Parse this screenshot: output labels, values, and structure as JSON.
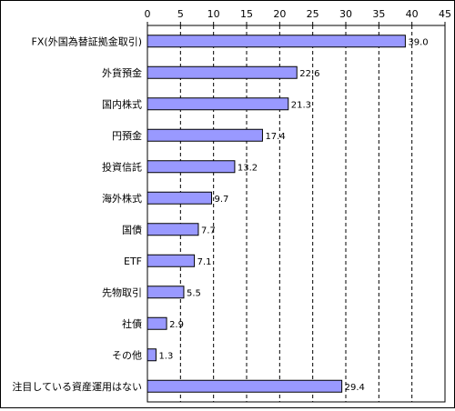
{
  "chart_data": {
    "type": "bar",
    "orientation": "horizontal",
    "categories": [
      "FX(外国為替証拠金取引)",
      "外貨預金",
      "国内株式",
      "円預金",
      "投資信託",
      "海外株式",
      "国債",
      "ETF",
      "先物取引",
      "社債",
      "その他",
      "注目している資産運用はない"
    ],
    "values": [
      39.0,
      22.6,
      21.3,
      17.4,
      13.2,
      9.7,
      7.7,
      7.1,
      5.5,
      2.9,
      1.3,
      29.4
    ],
    "value_labels": [
      "39.0",
      "22.6",
      "21.3",
      "17.4",
      "13.2",
      "9.7",
      "7.7",
      "7.1",
      "5.5",
      "2.9",
      "1.3",
      "29.4"
    ],
    "x_ticks": [
      0,
      5,
      10,
      15,
      20,
      25,
      30,
      35,
      40,
      45
    ],
    "xlim": [
      0,
      45
    ],
    "x_axis_position": "top",
    "grid": "vertical dashed",
    "title": "",
    "xlabel": "",
    "ylabel": "",
    "colors": {
      "bar_fill": "#9999ff",
      "bar_stroke": "#000000",
      "grid": "#000000",
      "frame": "#000000"
    }
  }
}
